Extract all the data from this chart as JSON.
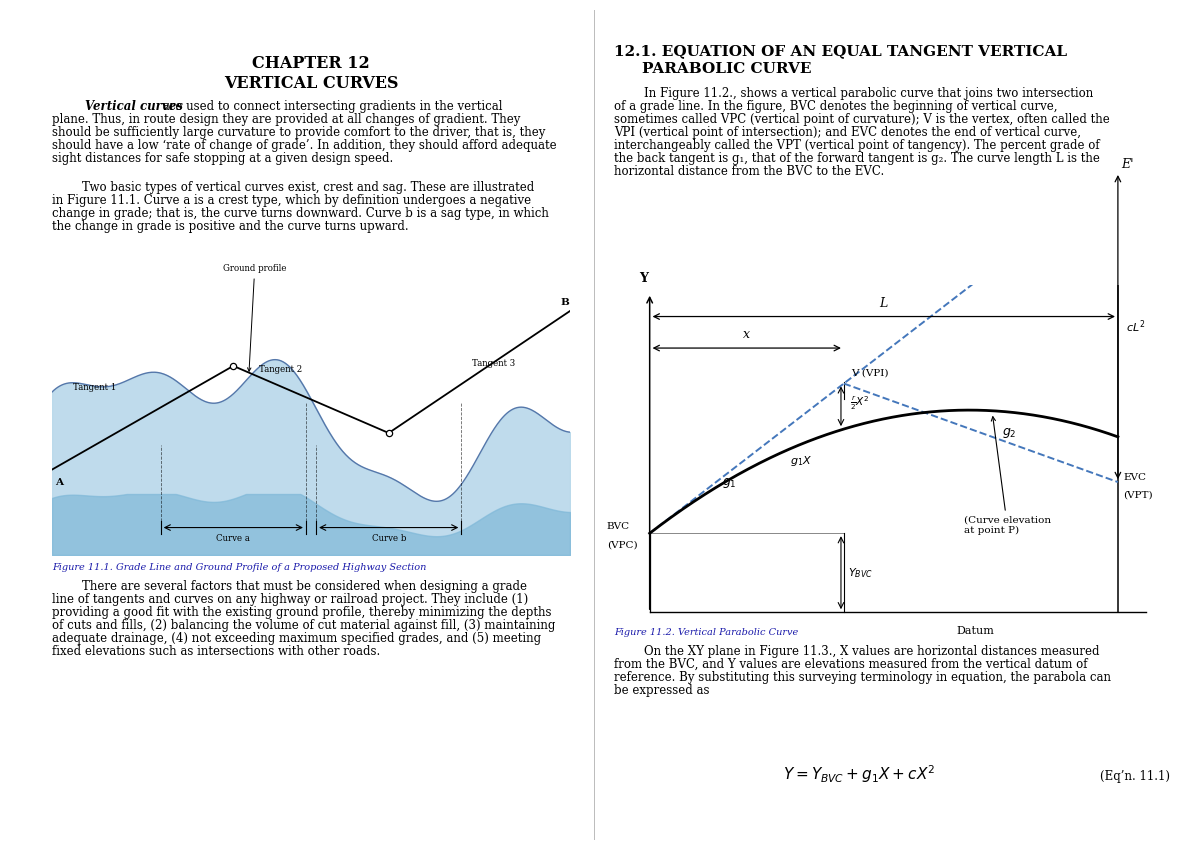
{
  "page_bg": "#ffffff",
  "chapter_title": "CHAPTER 12",
  "chapter_subtitle": "VERTICAL CURVES",
  "figure1_caption": "Figure 11.1. Grade Line and Ground Profile of a Proposed Highway Section",
  "figure2_caption": "Figure 11.2. Vertical Parabolic Curve",
  "eq_label": "(Eq’n. 11.1)",
  "text_color": "#000000",
  "caption_color": "#1a1aaa",
  "blue_color": "#4477bb",
  "left_para1_indent": "        ",
  "left_para2_indent": "        ",
  "right_para1_indent": "        ",
  "right_para2_indent": "        "
}
